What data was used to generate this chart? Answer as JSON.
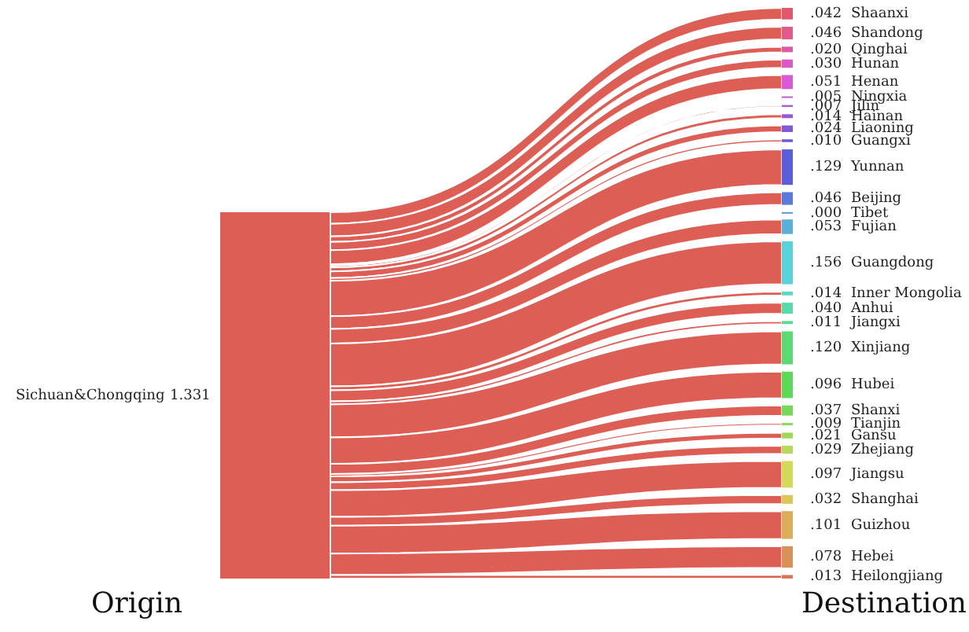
{
  "chart_data": {
    "type": "other",
    "annotations": [
      "Sichuan&Chongqing",
      "Origin",
      "Destination"
    ],
    "totals": [
      "1.331"
    ],
    "color": "#dd5e55",
    "categories": [
      "Shaanxi",
      "Shandong",
      "Qinghai",
      "Hunan",
      "Henan",
      "Ningxia",
      "Jilin",
      "Hainan",
      "Liaoning",
      "Guangxi",
      "Yunnan",
      "Beijing",
      "Tibet",
      "Fujian",
      "Guangdong",
      "Inner Mongolia",
      "Anhui",
      "Jiangxi",
      "Xinjiang",
      "Hubei",
      "Shanxi",
      "Tianjin",
      "Gansu",
      "Zhejiang",
      "Jiangsu",
      "Shanghai",
      "Guizhou",
      "Hebei",
      "Heilongjiang"
    ],
    "values": [
      0.042,
      0.046,
      0.02,
      0.03,
      0.051,
      0.005,
      0.007,
      0.014,
      0.024,
      0.01,
      0.129,
      0.046,
      0.0,
      0.053,
      0.156,
      0.014,
      0.04,
      0.011,
      0.12,
      0.096,
      0.037,
      0.009,
      0.021,
      0.029,
      0.097,
      0.032,
      0.101,
      0.078,
      0.013
    ],
    "value_labels": [
      ".042",
      ".046",
      ".020",
      ".030",
      ".051",
      ".005",
      ".007",
      ".014",
      ".024",
      ".010",
      ".129",
      ".046",
      ".000",
      ".053",
      ".156",
      ".014",
      ".040",
      ".011",
      ".120",
      ".096",
      ".037",
      ".009",
      ".021",
      ".029",
      ".097",
      ".032",
      ".101",
      ".078",
      ".013"
    ],
    "colors": [
      "#e0586e",
      "#e05a8a",
      "#dd59a8",
      "#d95ac4",
      "#d85ad8",
      "#c25ad9",
      "#a95ad9",
      "#975ad9",
      "#7e5ad9",
      "#6a5ad9",
      "#5a5fd9",
      "#5a7ad9",
      "#5a96d9",
      "#5ab0d9",
      "#5ad2d9",
      "#5ad9c8",
      "#5ad9aa",
      "#5ad98e",
      "#5ad975",
      "#5dd95a",
      "#72d95a",
      "#8ad95a",
      "#9fd95a",
      "#b5d95a",
      "#d3d95a",
      "#d9c75a",
      "#d9ad5a",
      "#d9915a",
      "#d9775a"
    ]
  }
}
